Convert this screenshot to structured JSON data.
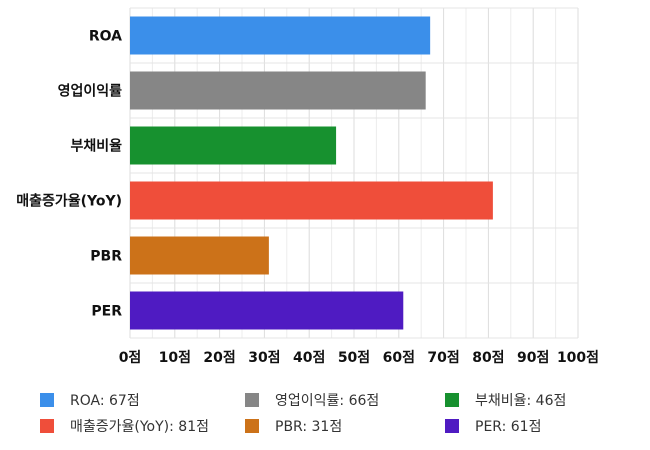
{
  "chart_data": {
    "type": "bar",
    "orientation": "horizontal",
    "categories": [
      "ROA",
      "영업이익률",
      "부채비율",
      "매출증가율(YoY)",
      "PBR",
      "PER"
    ],
    "values": [
      67,
      66,
      46,
      81,
      31,
      61
    ],
    "colors": [
      "#3b8fea",
      "#868686",
      "#17912f",
      "#ef4e3a",
      "#cc7219",
      "#4f1bc2"
    ],
    "xlim": [
      0,
      100
    ],
    "x_ticks": [
      0,
      10,
      20,
      30,
      40,
      50,
      60,
      70,
      80,
      90,
      100
    ],
    "x_tick_suffix": "점",
    "grid": true,
    "legend": {
      "position": "bottom",
      "items": [
        {
          "label": "ROA: 67점",
          "color": "#3b8fea"
        },
        {
          "label": "영업이익률: 66점",
          "color": "#868686"
        },
        {
          "label": "부채비율: 46점",
          "color": "#17912f"
        },
        {
          "label": "매출증가율(YoY): 81점",
          "color": "#ef4e3a"
        },
        {
          "label": "PBR: 31점",
          "color": "#cc7219"
        },
        {
          "label": "PER: 61점",
          "color": "#4f1bc2"
        }
      ]
    }
  }
}
